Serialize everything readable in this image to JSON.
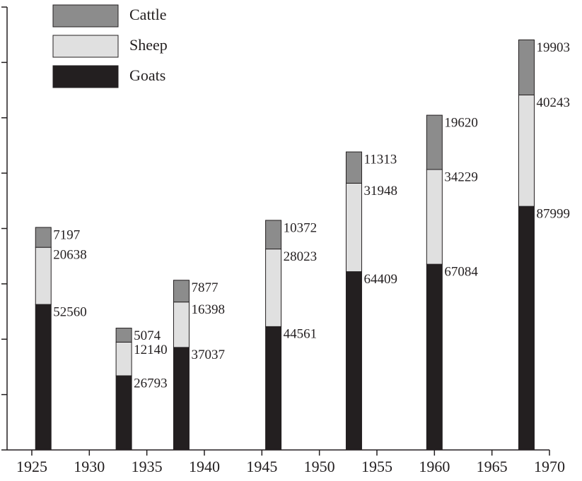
{
  "chart_data": {
    "type": "stacked_bar",
    "x": [
      1926,
      1933,
      1938,
      1946,
      1953,
      1960,
      1968
    ],
    "series": [
      {
        "name": "Goats",
        "color": "#231f20",
        "values": [
          52560,
          26793,
          37037,
          44561,
          64409,
          67084,
          87999
        ]
      },
      {
        "name": "Sheep",
        "color": "#e0e0e0",
        "values": [
          20638,
          12140,
          16398,
          28023,
          31948,
          34229,
          40243
        ]
      },
      {
        "name": "Cattle",
        "color": "#8c8c8c",
        "values": [
          7197,
          5074,
          7877,
          10372,
          11313,
          19620,
          19903
        ]
      }
    ],
    "xlim": [
      1922.85,
      1970
    ],
    "xticks": [
      1925,
      1930,
      1935,
      1940,
      1945,
      1950,
      1955,
      1960,
      1965,
      1970
    ],
    "ylim": [
      0,
      160000
    ],
    "yticks": [
      0,
      20000,
      40000,
      60000,
      80000,
      100000,
      120000,
      140000,
      160000
    ],
    "legend": "top-left"
  }
}
